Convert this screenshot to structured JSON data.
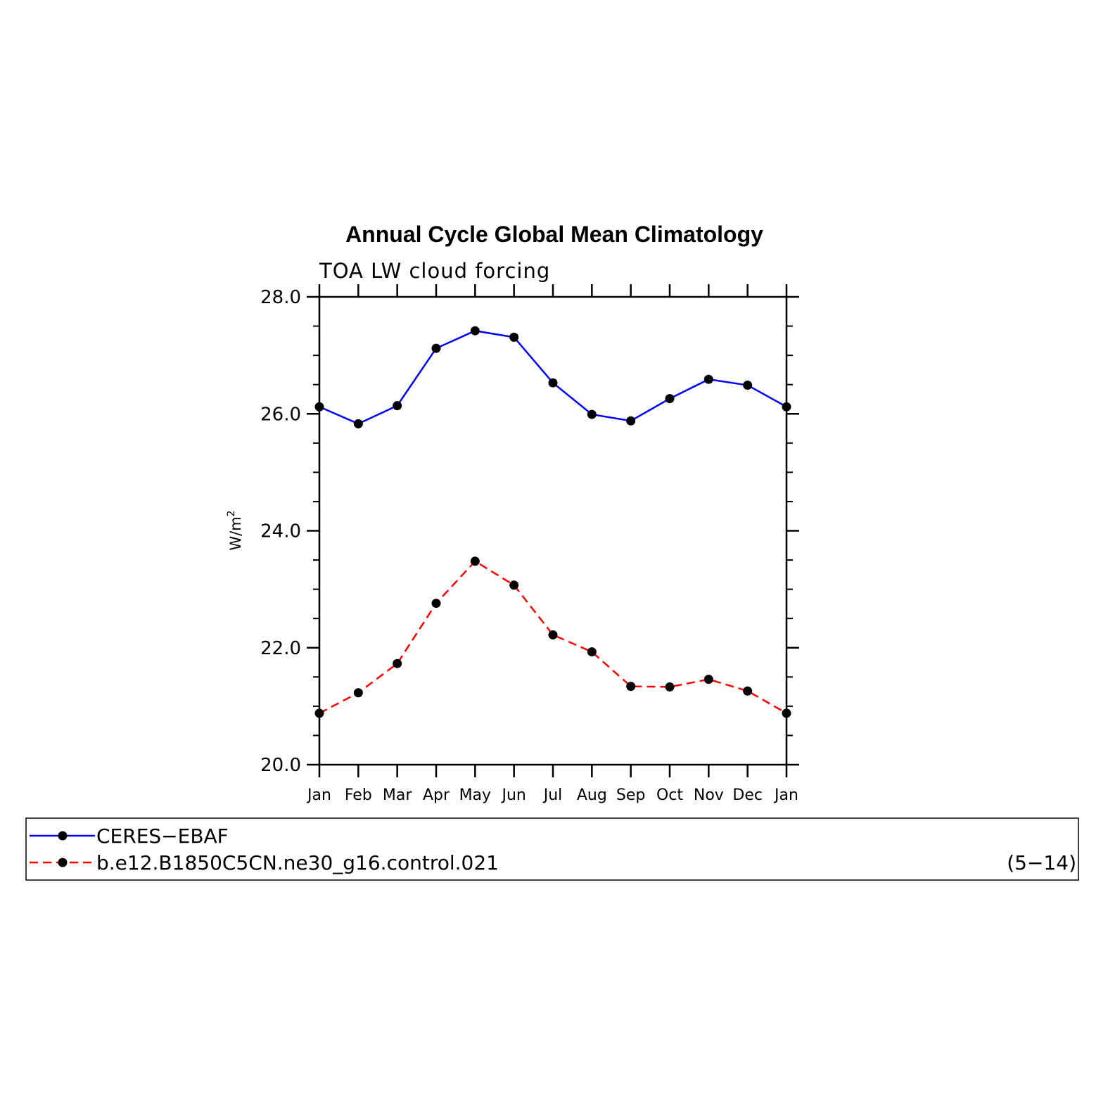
{
  "chart_data": {
    "type": "line",
    "title": "Annual Cycle Global Mean Climatology",
    "subtitle": "TOA LW cloud forcing",
    "ylabel": "W/m",
    "ylabel_sup": "2",
    "ylim": [
      20.0,
      28.0
    ],
    "ytick_labels": [
      "20.0",
      "22.0",
      "24.0",
      "26.0",
      "28.0"
    ],
    "categories": [
      "Jan",
      "Feb",
      "Mar",
      "Apr",
      "May",
      "Jun",
      "Jul",
      "Aug",
      "Sep",
      "Oct",
      "Nov",
      "Dec",
      "Jan"
    ],
    "series": [
      {
        "name": "CERES−EBAF",
        "color": "#0000ff",
        "dash": "solid",
        "values": [
          26.12,
          25.83,
          26.14,
          27.12,
          27.42,
          27.31,
          26.53,
          25.99,
          25.88,
          26.26,
          26.59,
          26.49,
          26.12
        ]
      },
      {
        "name": "b.e12.B1850C5CN.ne30_g16.control.021",
        "color": "#ff0000",
        "dash": "dashed",
        "values": [
          20.88,
          21.23,
          21.73,
          22.76,
          23.48,
          23.07,
          22.22,
          21.93,
          21.34,
          21.33,
          21.46,
          21.26,
          20.88
        ]
      }
    ],
    "legend_placement": "bottom",
    "legend_note": "(5−14)",
    "grid": false
  }
}
